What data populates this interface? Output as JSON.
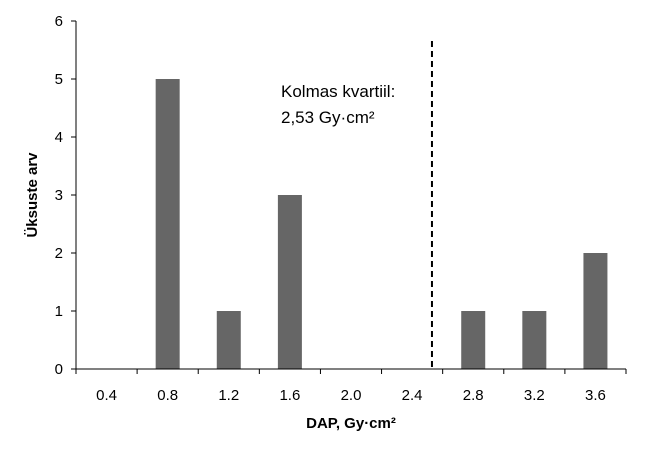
{
  "chart_data": {
    "type": "bar",
    "categories": [
      "0.4",
      "0.8",
      "1.2",
      "1.6",
      "2.0",
      "2.4",
      "2.8",
      "3.2",
      "3.6"
    ],
    "values": [
      0,
      5,
      1,
      3,
      0,
      0,
      1,
      1,
      2
    ],
    "xlabel": "DAP, Gy·cm²",
    "ylabel": "Üksuste arv",
    "ylim": [
      0,
      6
    ],
    "yticks": [
      "0",
      "1",
      "2",
      "3",
      "4",
      "5",
      "6"
    ],
    "grid": false,
    "legend": "none",
    "bar_color": "#666666",
    "annotation": {
      "line1": "Kolmas kvartiil:",
      "line2": "2,53 Gy·cm²",
      "value": 2.53,
      "line_style": "dashed"
    }
  }
}
